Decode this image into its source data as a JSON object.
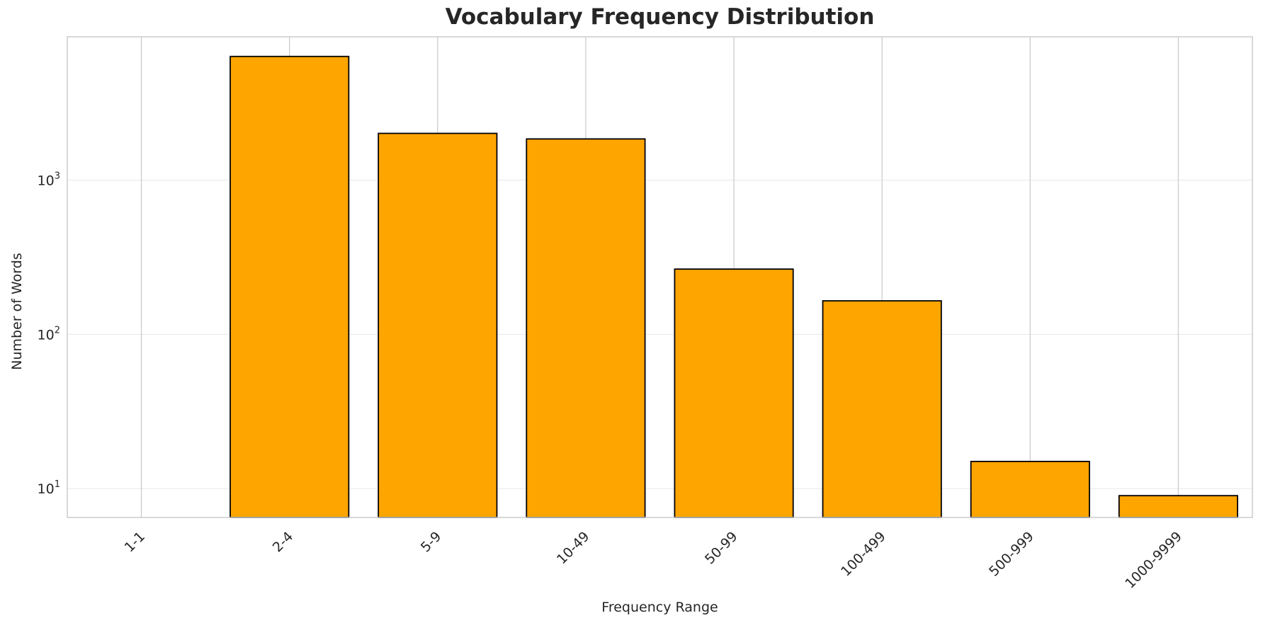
{
  "chart_data": {
    "type": "bar",
    "title": "Vocabulary Frequency Distribution",
    "xlabel": "Frequency Range",
    "ylabel": "Number of Words",
    "yscale": "log",
    "ylim": [
      6.5,
      8500
    ],
    "yticks": [
      {
        "value": 10,
        "base": "10",
        "exp": "1"
      },
      {
        "value": 100,
        "base": "10",
        "exp": "2"
      },
      {
        "value": 1000,
        "base": "10",
        "exp": "3"
      }
    ],
    "categories": [
      "1-1",
      "2-4",
      "5-9",
      "10-49",
      "50-99",
      "100-499",
      "500-999",
      "1000-9999"
    ],
    "values": [
      0,
      6340,
      2010,
      1850,
      265,
      165,
      15,
      9
    ],
    "bar_color": "#FFA500",
    "bar_edge_color": "#000000",
    "grid": true,
    "legend": null
  }
}
